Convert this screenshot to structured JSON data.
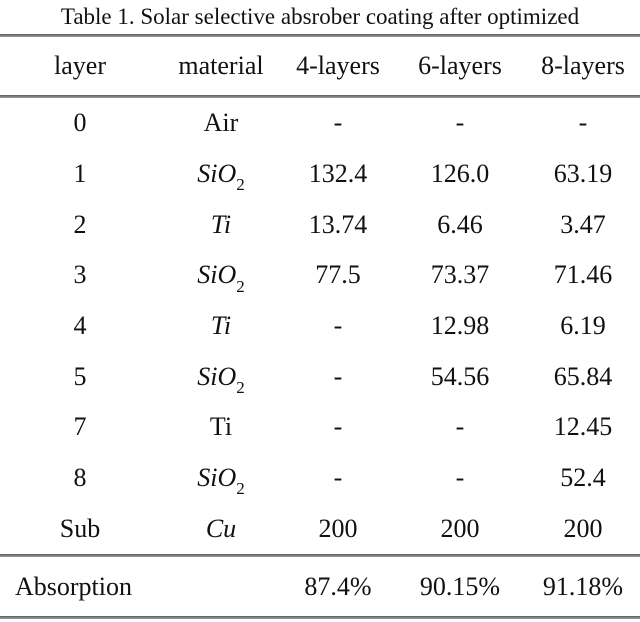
{
  "title": "Table 1. Solar selective absrober coating after optimized",
  "table": {
    "columns": {
      "layer": "layer",
      "material": "material",
      "c4": "4-layers",
      "c6": "6-layers",
      "c8": "8-layers"
    },
    "rows": [
      {
        "layer": "0",
        "material": "Air",
        "sub": "",
        "v4": "-",
        "v6": "-",
        "v8": "-"
      },
      {
        "layer": "1",
        "material": "SiO",
        "sub": "2",
        "v4": "132.4",
        "v6": "126.0",
        "v8": "63.19"
      },
      {
        "layer": "2",
        "material": "Ti",
        "sub": "",
        "v4": "13.74",
        "v6": "6.46",
        "v8": "3.47"
      },
      {
        "layer": "3",
        "material": "SiO",
        "sub": "2",
        "v4": "77.5",
        "v6": "73.37",
        "v8": "71.46"
      },
      {
        "layer": "4",
        "material": "Ti",
        "sub": "",
        "v4": "-",
        "v6": "12.98",
        "v8": "6.19"
      },
      {
        "layer": "5",
        "material": "SiO",
        "sub": "2",
        "v4": "-",
        "v6": "54.56",
        "v8": "65.84"
      },
      {
        "layer": "7",
        "material": "Ti",
        "sub": "",
        "v4": "-",
        "v6": "-",
        "v8": "12.45"
      },
      {
        "layer": "8",
        "material": "SiO",
        "sub": "2",
        "v4": "-",
        "v6": "-",
        "v8": "52.4"
      },
      {
        "layer": "Sub",
        "material": "Cu",
        "sub": "",
        "v4": "200",
        "v6": "200",
        "v8": "200"
      }
    ],
    "footer": {
      "label": "Absorption",
      "v4": "87.4%",
      "v6": "90.15%",
      "v8": "91.18%"
    }
  },
  "colors": {
    "text": "#111111",
    "rule": "#6e6e6e",
    "background": "#ffffff"
  }
}
